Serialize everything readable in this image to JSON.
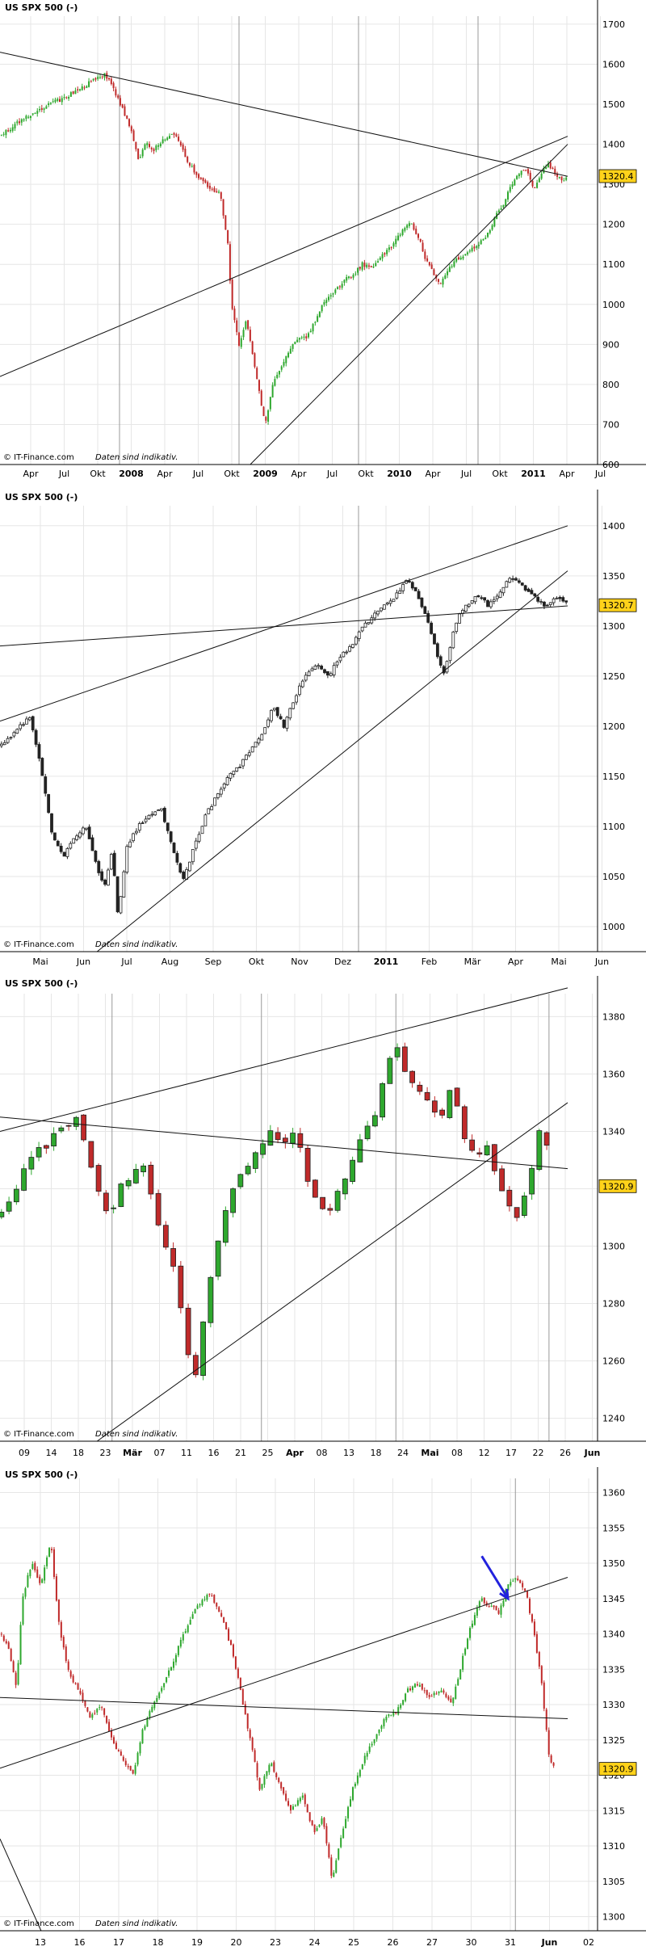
{
  "chart_data": [
    {
      "type": "candlestick",
      "title": "US SPX 500 (-)",
      "credit": "© IT-Finance.com",
      "disclaimer": "Daten sind indikativ.",
      "y_ticks": [
        600,
        700,
        800,
        900,
        1000,
        1100,
        1200,
        1300,
        1400,
        1500,
        1600,
        1700
      ],
      "ylim": [
        600,
        1720
      ],
      "x_ticks": [
        "Apr",
        "Jul",
        "Okt",
        "2008",
        "Apr",
        "Jul",
        "Okt",
        "2009",
        "Apr",
        "Jul",
        "Okt",
        "2010",
        "Apr",
        "Jul",
        "Okt",
        "2011",
        "Apr",
        "Jul"
      ],
      "x_ticks_bold": [
        "2008",
        "2009",
        "2010",
        "2011"
      ],
      "xlim": [
        0,
        800
      ],
      "last_value": "1320.4",
      "price_path": [
        [
          0,
          1420
        ],
        [
          25,
          1455
        ],
        [
          45,
          1480
        ],
        [
          65,
          1500
        ],
        [
          85,
          1515
        ],
        [
          105,
          1535
        ],
        [
          125,
          1560
        ],
        [
          140,
          1575
        ],
        [
          150,
          1545
        ],
        [
          160,
          1505
        ],
        [
          168,
          1470
        ],
        [
          175,
          1440
        ],
        [
          185,
          1360
        ],
        [
          195,
          1405
        ],
        [
          205,
          1385
        ],
        [
          220,
          1415
        ],
        [
          235,
          1430
        ],
        [
          250,
          1360
        ],
        [
          265,
          1320
        ],
        [
          280,
          1290
        ],
        [
          295,
          1275
        ],
        [
          305,
          1150
        ],
        [
          310,
          1000
        ],
        [
          320,
          900
        ],
        [
          330,
          960
        ],
        [
          340,
          860
        ],
        [
          350,
          750
        ],
        [
          355,
          700
        ],
        [
          365,
          800
        ],
        [
          375,
          840
        ],
        [
          385,
          880
        ],
        [
          400,
          915
        ],
        [
          410,
          920
        ],
        [
          420,
          950
        ],
        [
          430,
          995
        ],
        [
          440,
          1015
        ],
        [
          460,
          1060
        ],
        [
          470,
          1070
        ],
        [
          485,
          1100
        ],
        [
          500,
          1090
        ],
        [
          510,
          1120
        ],
        [
          525,
          1145
        ],
        [
          540,
          1190
        ],
        [
          550,
          1200
        ],
        [
          560,
          1170
        ],
        [
          570,
          1110
        ],
        [
          580,
          1080
        ],
        [
          590,
          1050
        ],
        [
          600,
          1090
        ],
        [
          610,
          1110
        ],
        [
          625,
          1130
        ],
        [
          640,
          1150
        ],
        [
          655,
          1180
        ],
        [
          665,
          1225
        ],
        [
          675,
          1255
        ],
        [
          685,
          1300
        ],
        [
          695,
          1330
        ],
        [
          705,
          1340
        ],
        [
          715,
          1290
        ],
        [
          725,
          1330
        ],
        [
          735,
          1350
        ],
        [
          745,
          1320
        ],
        [
          755,
          1310
        ],
        [
          760,
          1320.4
        ]
      ],
      "trendlines": [
        {
          "from": [
            0,
            1630
          ],
          "to": [
            760,
            1320
          ]
        },
        {
          "from": [
            0,
            820
          ],
          "to": [
            760,
            1420
          ]
        },
        {
          "from": [
            335,
            600
          ],
          "to": [
            760,
            1400
          ]
        }
      ],
      "vlines": [
        160,
        320,
        480,
        640
      ]
    },
    {
      "type": "candlestick",
      "title": "US SPX 500 (-)",
      "credit": "© IT-Finance.com",
      "disclaimer": "Daten sind indikativ.",
      "y_ticks": [
        1000,
        1050,
        1100,
        1150,
        1200,
        1250,
        1300,
        1350,
        1400
      ],
      "ylim": [
        975,
        1420
      ],
      "x_ticks": [
        "Mai",
        "Jun",
        "Jul",
        "Aug",
        "Sep",
        "Okt",
        "Nov",
        "Dez",
        "2011",
        "Feb",
        "Mär",
        "Apr",
        "Mai",
        "Jun"
      ],
      "x_ticks_bold": [
        "2011"
      ],
      "xlim": [
        0,
        800
      ],
      "last_value": "1320.7",
      "price_path": [
        [
          0,
          1180
        ],
        [
          20,
          1195
        ],
        [
          40,
          1210
        ],
        [
          55,
          1160
        ],
        [
          70,
          1090
        ],
        [
          85,
          1070
        ],
        [
          100,
          1090
        ],
        [
          115,
          1100
        ],
        [
          130,
          1060
        ],
        [
          140,
          1040
        ],
        [
          150,
          1075
        ],
        [
          158,
          1010
        ],
        [
          170,
          1080
        ],
        [
          185,
          1100
        ],
        [
          200,
          1110
        ],
        [
          215,
          1120
        ],
        [
          230,
          1080
        ],
        [
          245,
          1045
        ],
        [
          260,
          1080
        ],
        [
          275,
          1110
        ],
        [
          290,
          1130
        ],
        [
          305,
          1150
        ],
        [
          320,
          1160
        ],
        [
          335,
          1175
        ],
        [
          350,
          1190
        ],
        [
          365,
          1220
        ],
        [
          380,
          1200
        ],
        [
          395,
          1230
        ],
        [
          410,
          1250
        ],
        [
          425,
          1260
        ],
        [
          440,
          1250
        ],
        [
          455,
          1270
        ],
        [
          470,
          1280
        ],
        [
          485,
          1300
        ],
        [
          500,
          1310
        ],
        [
          515,
          1320
        ],
        [
          530,
          1330
        ],
        [
          545,
          1345
        ],
        [
          560,
          1330
        ],
        [
          575,
          1300
        ],
        [
          585,
          1270
        ],
        [
          595,
          1250
        ],
        [
          605,
          1290
        ],
        [
          615,
          1310
        ],
        [
          625,
          1320
        ],
        [
          640,
          1330
        ],
        [
          655,
          1320
        ],
        [
          670,
          1335
        ],
        [
          685,
          1350
        ],
        [
          700,
          1340
        ],
        [
          715,
          1330
        ],
        [
          730,
          1320
        ],
        [
          745,
          1330
        ],
        [
          760,
          1320.7
        ]
      ],
      "trendlines": [
        {
          "from": [
            0,
            1280
          ],
          "to": [
            760,
            1320
          ]
        },
        {
          "from": [
            0,
            1205
          ],
          "to": [
            760,
            1400
          ]
        },
        {
          "from": [
            130,
            975
          ],
          "to": [
            760,
            1355
          ]
        }
      ],
      "vlines": [
        480
      ]
    },
    {
      "type": "candlestick",
      "title": "US SPX 500 (-)",
      "credit": "© IT-Finance.com",
      "disclaimer": "Daten sind indikativ.",
      "y_ticks": [
        1240,
        1260,
        1280,
        1300,
        1320,
        1340,
        1360,
        1380
      ],
      "ylim": [
        1232,
        1388
      ],
      "x_ticks": [
        "09",
        "14",
        "18",
        "23",
        "Mär",
        "07",
        "11",
        "16",
        "21",
        "25",
        "Apr",
        "08",
        "13",
        "18",
        "24",
        "Mai",
        "08",
        "12",
        "17",
        "22",
        "26",
        "Jun"
      ],
      "x_ticks_bold": [
        "Mär",
        "Apr",
        "Mai",
        "Jun"
      ],
      "xlim": [
        0,
        800
      ],
      "last_value": "1320.9",
      "price_path": [
        [
          0,
          1310
        ],
        [
          20,
          1320
        ],
        [
          40,
          1330
        ],
        [
          60,
          1335
        ],
        [
          80,
          1340
        ],
        [
          100,
          1345
        ],
        [
          115,
          1335
        ],
        [
          130,
          1320
        ],
        [
          145,
          1310
        ],
        [
          160,
          1320
        ],
        [
          175,
          1325
        ],
        [
          190,
          1330
        ],
        [
          205,
          1315
        ],
        [
          220,
          1300
        ],
        [
          235,
          1290
        ],
        [
          250,
          1265
        ],
        [
          262,
          1255
        ],
        [
          275,
          1280
        ],
        [
          290,
          1300
        ],
        [
          305,
          1315
        ],
        [
          320,
          1325
        ],
        [
          335,
          1330
        ],
        [
          350,
          1335
        ],
        [
          365,
          1340
        ],
        [
          380,
          1335
        ],
        [
          395,
          1340
        ],
        [
          410,
          1325
        ],
        [
          425,
          1315
        ],
        [
          440,
          1310
        ],
        [
          455,
          1320
        ],
        [
          470,
          1330
        ],
        [
          485,
          1340
        ],
        [
          500,
          1345
        ],
        [
          515,
          1360
        ],
        [
          530,
          1370
        ],
        [
          545,
          1360
        ],
        [
          560,
          1355
        ],
        [
          575,
          1350
        ],
        [
          590,
          1345
        ],
        [
          605,
          1355
        ],
        [
          620,
          1340
        ],
        [
          635,
          1330
        ],
        [
          650,
          1335
        ],
        [
          665,
          1325
        ],
        [
          680,
          1315
        ],
        [
          695,
          1310
        ],
        [
          710,
          1325
        ],
        [
          725,
          1345
        ],
        [
          740,
          1320.9
        ]
      ],
      "trendlines": [
        {
          "from": [
            0,
            1345
          ],
          "to": [
            760,
            1327
          ]
        },
        {
          "from": [
            0,
            1340
          ],
          "to": [
            760,
            1390
          ]
        },
        {
          "from": [
            130,
            1232
          ],
          "to": [
            760,
            1350
          ]
        }
      ],
      "vlines": [
        150,
        350,
        530,
        735
      ]
    },
    {
      "type": "candlestick",
      "title": "US SPX 500 (-)",
      "credit": "© IT-Finance.com",
      "disclaimer": "Daten sind indikativ.",
      "y_ticks": [
        1300,
        1305,
        1310,
        1315,
        1320,
        1325,
        1330,
        1335,
        1340,
        1345,
        1350,
        1355,
        1360
      ],
      "ylim": [
        1298,
        1362
      ],
      "x_ticks": [
        "13",
        "16",
        "17",
        "18",
        "19",
        "20",
        "23",
        "24",
        "25",
        "26",
        "27",
        "30",
        "31",
        "Jun",
        "02"
      ],
      "x_ticks_bold": [
        "Jun"
      ],
      "xlim": [
        0,
        800
      ],
      "last_value": "1320.9",
      "price_path": [
        [
          0,
          1340
        ],
        [
          12,
          1338
        ],
        [
          22,
          1332
        ],
        [
          30,
          1345
        ],
        [
          42,
          1350
        ],
        [
          55,
          1347
        ],
        [
          68,
          1353
        ],
        [
          78,
          1342
        ],
        [
          90,
          1335
        ],
        [
          105,
          1332
        ],
        [
          120,
          1328
        ],
        [
          135,
          1330
        ],
        [
          150,
          1325
        ],
        [
          165,
          1322
        ],
        [
          178,
          1320
        ],
        [
          190,
          1326
        ],
        [
          205,
          1330
        ],
        [
          220,
          1333
        ],
        [
          235,
          1337
        ],
        [
          250,
          1341
        ],
        [
          265,
          1344
        ],
        [
          280,
          1346
        ],
        [
          295,
          1343
        ],
        [
          310,
          1338
        ],
        [
          322,
          1332
        ],
        [
          335,
          1325
        ],
        [
          348,
          1318
        ],
        [
          362,
          1322
        ],
        [
          376,
          1318
        ],
        [
          390,
          1315
        ],
        [
          405,
          1317
        ],
        [
          420,
          1312
        ],
        [
          432,
          1314
        ],
        [
          445,
          1305
        ],
        [
          458,
          1312
        ],
        [
          472,
          1318
        ],
        [
          486,
          1322
        ],
        [
          500,
          1325
        ],
        [
          515,
          1328
        ],
        [
          530,
          1329
        ],
        [
          545,
          1332
        ],
        [
          560,
          1333
        ],
        [
          575,
          1331
        ],
        [
          590,
          1332
        ],
        [
          605,
          1330
        ],
        [
          618,
          1336
        ],
        [
          630,
          1341
        ],
        [
          643,
          1345
        ],
        [
          655,
          1344
        ],
        [
          668,
          1343
        ],
        [
          680,
          1347
        ],
        [
          692,
          1348
        ],
        [
          704,
          1346
        ],
        [
          715,
          1340
        ],
        [
          725,
          1333
        ],
        [
          735,
          1323
        ],
        [
          742,
          1320.9
        ]
      ],
      "trendlines": [
        {
          "from": [
            0,
            1331
          ],
          "to": [
            760,
            1328
          ]
        },
        {
          "from": [
            0,
            1321
          ],
          "to": [
            760,
            1348
          ]
        },
        {
          "from": [
            0,
            1311
          ],
          "to": [
            55,
            1298
          ]
        }
      ],
      "vlines": [
        690
      ],
      "arrow": {
        "from": [
          645,
          1351
        ],
        "to": [
          680,
          1345
        ],
        "color": "#2222dd"
      }
    }
  ],
  "colors": {
    "up": "#2ea82e",
    "down": "#c02a2a",
    "candle_edge": "#222222",
    "grid": "#e6e6e6",
    "vline": "#999999",
    "trend": "#111111",
    "label_bg": "#ffd21a",
    "arrow": "#2222dd"
  }
}
